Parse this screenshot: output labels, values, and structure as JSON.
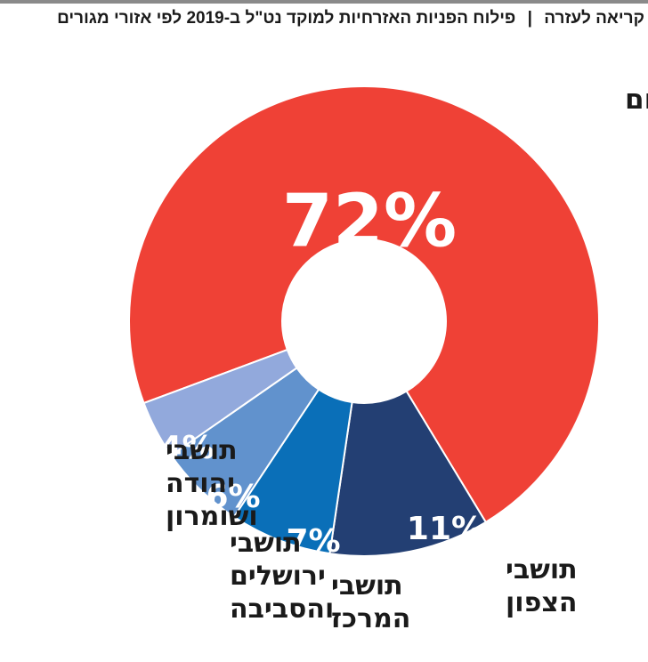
{
  "header": {
    "category": "קריאה לעזרה",
    "separator": "|",
    "title": "פילוח הפניות האזרחיות למוקד נט\"ל ב-2019 לפי אזורי מגורים"
  },
  "chart_data": {
    "type": "pie",
    "title": "פילוח הפניות האזרחיות למוקד נט\"ל ב-2019 לפי אזורי מגורים",
    "donut": true,
    "unit": "%",
    "slices": [
      {
        "label_lines": [
          "תושבי הדרום"
        ],
        "value": 72,
        "display": "72%",
        "color": "#ef4136"
      },
      {
        "label_lines": [
          "תושבי",
          "הצפון"
        ],
        "value": 11,
        "display": "11%",
        "color": "#233f73"
      },
      {
        "label_lines": [
          "תושבי",
          "המרכז"
        ],
        "value": 7,
        "display": "7%",
        "color": "#0a6fb8"
      },
      {
        "label_lines": [
          "תושבי",
          "ירושלים",
          "והסביבה"
        ],
        "value": 6,
        "display": "6%",
        "color": "#6192cd"
      },
      {
        "label_lines": [
          "תושבי",
          "יהודה",
          "ושומרון"
        ],
        "value": 4,
        "display": "4%",
        "color": "#92a9dc"
      }
    ]
  }
}
